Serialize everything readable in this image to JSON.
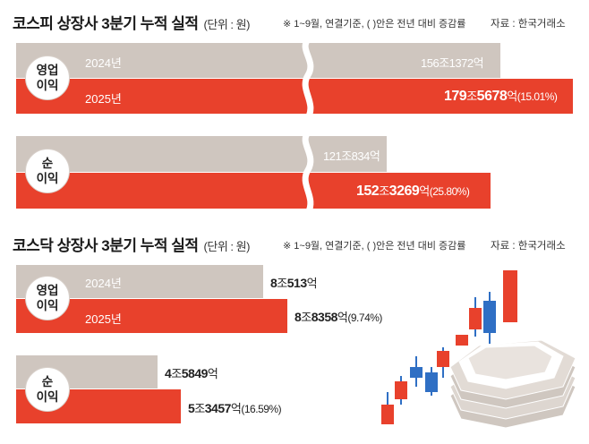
{
  "kospi": {
    "title": "코스피 상장사 3분기 누적 실적",
    "unit": "(단위 : 원)",
    "note": "※ 1~9월, 연결기준, (  )안은 전년 대비 증감률",
    "source": "자료 : 한국거래소",
    "operating": {
      "label_line1": "영업",
      "label_line2": "이익",
      "y2024_label": "2024년",
      "y2025_label": "2025년",
      "v2024": "156조1372억",
      "v2025_a": "179",
      "v2025_b": "조",
      "v2025_c": "5678",
      "v2025_d": "억",
      "v2025_pct": "(15.01%)"
    },
    "net": {
      "label_line1": "순",
      "label_line2": "이익",
      "v2024": "121조834억",
      "v2025_a": "152",
      "v2025_b": "조",
      "v2025_c": "3269",
      "v2025_d": "억",
      "v2025_pct": "(25.80%)"
    }
  },
  "kosdaq": {
    "title": "코스닥 상장사 3분기 누적 실적",
    "unit": "(단위 : 원)",
    "note": "※ 1~9월, 연결기준, (  )안은 전년 대비 증감률",
    "source": "자료 : 한국거래소",
    "operating": {
      "label_line1": "영업",
      "label_line2": "이익",
      "y2024_label": "2024년",
      "y2025_label": "2025년",
      "v2024_a": "8",
      "v2024_b": "조",
      "v2024_c": "513",
      "v2024_d": "억",
      "v2025_a": "8",
      "v2025_b": "조",
      "v2025_c": "8358",
      "v2025_d": "억",
      "v2025_pct": "(9.74%)"
    },
    "net": {
      "label_line1": "순",
      "label_line2": "이익",
      "v2024_a": "4",
      "v2024_b": "조",
      "v2024_c": "5849",
      "v2024_d": "억",
      "v2025_a": "5",
      "v2025_b": "조",
      "v2025_c": "3457",
      "v2025_d": "억",
      "v2025_pct": "(16.59%)"
    }
  },
  "colors": {
    "gray_bar": "#cfc6bf",
    "red_bar": "#e8412c",
    "blue_accent": "#2f6fc4"
  },
  "chart_data": [
    {
      "type": "bar",
      "title": "코스피 상장사 3분기 누적 실적",
      "unit": "원",
      "categories": [
        "영업이익",
        "순이익"
      ],
      "series": [
        {
          "name": "2024년",
          "values": [
            1561372,
            1210834
          ]
        },
        {
          "name": "2025년",
          "values": [
            1795678,
            1523269
          ]
        }
      ],
      "value_unit": "억",
      "growth_pct": [
        15.01,
        25.8
      ]
    },
    {
      "type": "bar",
      "title": "코스닥 상장사 3분기 누적 실적",
      "unit": "원",
      "categories": [
        "영업이익",
        "순이익"
      ],
      "series": [
        {
          "name": "2024년",
          "values": [
            80513,
            45849
          ]
        },
        {
          "name": "2025년",
          "values": [
            88358,
            53457
          ]
        }
      ],
      "value_unit": "억",
      "growth_pct": [
        9.74,
        16.59
      ]
    }
  ]
}
